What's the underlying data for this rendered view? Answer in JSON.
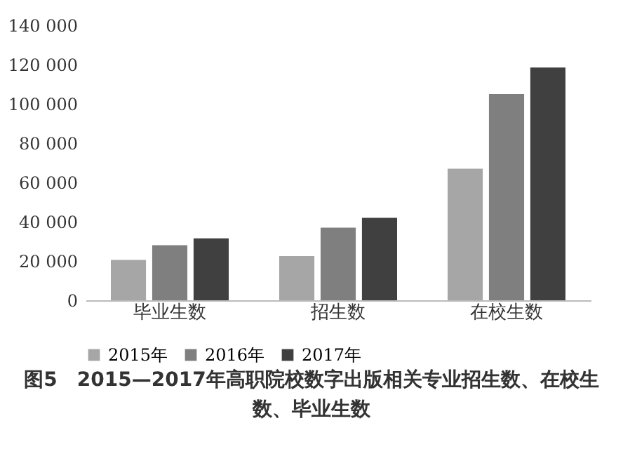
{
  "chart_data": {
    "type": "bar",
    "title": "图5　2015—2017年高职院校数字出版相关专业招生数、在校生数、毕业生数",
    "categories": [
      "毕业生数",
      "招生数",
      "在校生数"
    ],
    "series": [
      {
        "name": "2015年",
        "color": "#a6a6a6",
        "values": [
          20500,
          22500,
          67000
        ]
      },
      {
        "name": "2016年",
        "color": "#7f7f7f",
        "values": [
          28000,
          37000,
          105000
        ]
      },
      {
        "name": "2017年",
        "color": "#404040",
        "values": [
          31500,
          42000,
          118500
        ]
      }
    ],
    "ylim": [
      0,
      140000
    ],
    "yticks": [
      {
        "value": 0,
        "label": "0"
      },
      {
        "value": 20000,
        "label": "20 000"
      },
      {
        "value": 40000,
        "label": "40 000"
      },
      {
        "value": 60000,
        "label": "60 000"
      },
      {
        "value": 80000,
        "label": "80 000"
      },
      {
        "value": 100000,
        "label": "100 000"
      },
      {
        "value": 120000,
        "label": "120 000"
      },
      {
        "value": 140000,
        "label": "140 000"
      }
    ],
    "grid": false,
    "legend": "bottom"
  }
}
